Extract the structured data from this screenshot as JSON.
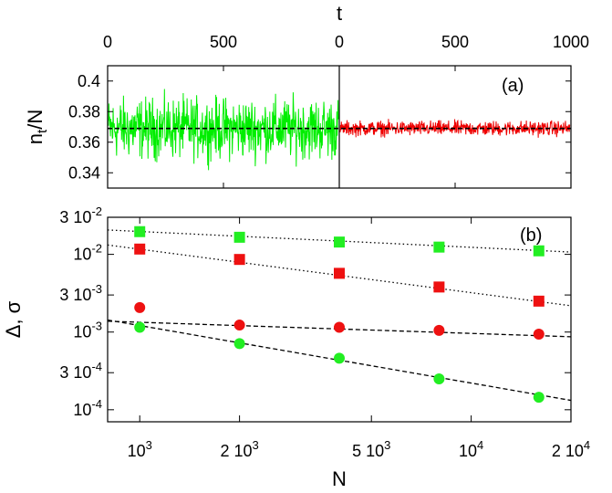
{
  "chart_data": [
    {
      "type": "line",
      "label": "(a)",
      "top_axis_label": "t",
      "top_ticks_left": [
        "0",
        "500"
      ],
      "top_ticks_right": [
        "0",
        "500",
        "1000"
      ],
      "ylabel_main": "n",
      "ylabel_sub": "t",
      "ylabel_tail": "/N",
      "yticks": [
        "0.4",
        "0.38",
        "0.36",
        "0.34"
      ],
      "ytick_values": [
        0.4,
        0.38,
        0.36,
        0.34
      ],
      "ylim": [
        0.33,
        0.41
      ],
      "x_segments": [
        {
          "name": "",
          "range": [
            0,
            1000
          ],
          "color": "#00ee00",
          "mean": 0.369,
          "amplitude": 0.016
        },
        {
          "name": "",
          "range": [
            0,
            1000
          ],
          "color": "#ee0000",
          "mean": 0.369,
          "amplitude": 0.004
        }
      ],
      "reference_line": 0.369,
      "grid": false
    },
    {
      "type": "scatter",
      "label": "(b)",
      "xlabel": "N",
      "ylabel": "Δ, σ",
      "xscale": "log",
      "yscale": "log",
      "xlim": [
        800,
        20000
      ],
      "ylim": [
        7e-05,
        0.03
      ],
      "xticks": [
        {
          "value": 1000,
          "base": "10",
          "exp": "3"
        },
        {
          "value": 2000,
          "base": "2 10",
          "exp": "3"
        },
        {
          "value": 5000,
          "base": "5 10",
          "exp": "3"
        },
        {
          "value": 10000,
          "base": "10",
          "exp": "4"
        },
        {
          "value": 20000,
          "base": "2 10",
          "exp": "4"
        }
      ],
      "yticks": [
        {
          "value": 0.03,
          "base": "3 10",
          "exp": "-2"
        },
        {
          "value": 0.01,
          "base": "10",
          "exp": "-2"
        },
        {
          "value": 0.003,
          "base": "3 10",
          "exp": "-3"
        },
        {
          "value": 0.001,
          "base": "10",
          "exp": "-3"
        },
        {
          "value": 0.0003,
          "base": "3 10",
          "exp": "-4"
        },
        {
          "value": 0.0001,
          "base": "10",
          "exp": "-4"
        }
      ],
      "x": [
        1000,
        2000,
        4000,
        8000,
        16000
      ],
      "series": [
        {
          "marker": "square",
          "color": "#22ee22",
          "values": [
            0.0196,
            0.0166,
            0.0144,
            0.0124,
            0.0111
          ],
          "fit": {
            "style": "dotted",
            "x": [
              800,
              20000
            ],
            "y": [
              0.0206,
              0.0107
            ]
          }
        },
        {
          "marker": "square",
          "color": "#ee1111",
          "values": [
            0.0117,
            0.0086,
            0.0057,
            0.0038,
            0.0025
          ],
          "fit": {
            "style": "dotted",
            "x": [
              800,
              20000
            ],
            "y": [
              0.0132,
              0.00218
            ]
          }
        },
        {
          "marker": "circle",
          "color": "#ee1111",
          "values": [
            0.00207,
            0.00123,
            0.00115,
            0.00105,
            0.00094
          ],
          "fit": {
            "style": "dashed",
            "x": [
              800,
              20000
            ],
            "y": [
              0.00138,
              0.00087
            ]
          }
        },
        {
          "marker": "circle",
          "color": "#22ee22",
          "values": [
            0.00115,
            0.00071,
            0.00046,
            0.00025,
            0.000145
          ],
          "fit": {
            "style": "dashed",
            "x": [
              800,
              20000
            ],
            "y": [
              0.00143,
              0.000132
            ]
          }
        }
      ],
      "grid": false
    }
  ]
}
